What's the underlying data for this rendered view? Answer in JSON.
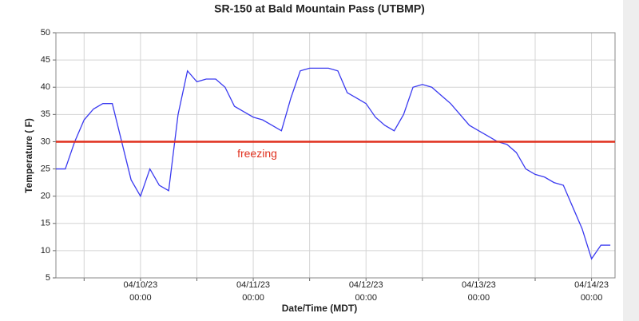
{
  "chart_data": {
    "type": "line",
    "title": "SR-150 at Bald Mountain Pass (UTBMP)",
    "xlabel": "Date/Time (MDT)",
    "ylabel": "Temperature ( F)",
    "x": [
      "04/09/23 06:00",
      "04/09/23 08:00",
      "04/09/23 10:00",
      "04/09/23 12:00",
      "04/09/23 14:00",
      "04/09/23 16:00",
      "04/09/23 18:00",
      "04/09/23 20:00",
      "04/09/23 22:00",
      "04/10/23 00:00",
      "04/10/23 02:00",
      "04/10/23 04:00",
      "04/10/23 06:00",
      "04/10/23 08:00",
      "04/10/23 10:00",
      "04/10/23 12:00",
      "04/10/23 14:00",
      "04/10/23 16:00",
      "04/10/23 18:00",
      "04/10/23 20:00",
      "04/10/23 22:00",
      "04/11/23 00:00",
      "04/11/23 02:00",
      "04/11/23 04:00",
      "04/11/23 06:00",
      "04/11/23 08:00",
      "04/11/23 10:00",
      "04/11/23 12:00",
      "04/11/23 14:00",
      "04/11/23 16:00",
      "04/11/23 18:00",
      "04/11/23 20:00",
      "04/11/23 22:00",
      "04/12/23 00:00",
      "04/12/23 02:00",
      "04/12/23 04:00",
      "04/12/23 06:00",
      "04/12/23 08:00",
      "04/12/23 10:00",
      "04/12/23 12:00",
      "04/12/23 14:00",
      "04/12/23 16:00",
      "04/12/23 18:00",
      "04/12/23 20:00",
      "04/12/23 22:00",
      "04/13/23 00:00",
      "04/13/23 02:00",
      "04/13/23 04:00",
      "04/13/23 06:00",
      "04/13/23 08:00",
      "04/13/23 10:00",
      "04/13/23 12:00",
      "04/13/23 14:00",
      "04/13/23 16:00",
      "04/13/23 18:00",
      "04/13/23 20:00",
      "04/13/23 22:00",
      "04/14/23 00:00",
      "04/14/23 02:00",
      "04/14/23 04:00"
    ],
    "series": [
      {
        "name": "Temperature",
        "color": "#3a3af0",
        "values": [
          25,
          25,
          30,
          34,
          36,
          37,
          37,
          30,
          23,
          20,
          25,
          22,
          21,
          35,
          43,
          41,
          41.5,
          41.5,
          40,
          36.5,
          35.5,
          34.5,
          34,
          33,
          32,
          38,
          43,
          43.5,
          43.5,
          43.5,
          43,
          39,
          38,
          37,
          34.5,
          33,
          32,
          35,
          40,
          40.5,
          40,
          38.5,
          37,
          35,
          33,
          32,
          31,
          30,
          29.5,
          28,
          25,
          24,
          23.5,
          22.5,
          22,
          18,
          14,
          8.5,
          11,
          11
        ]
      }
    ],
    "reference_line": {
      "value": 30,
      "label": "freezing",
      "color": "#e0301e"
    },
    "xlim": [
      "04/09/23 06:00",
      "04/14/23 05:00"
    ],
    "xticks": [
      {
        "value": "04/09/23 12:00",
        "label": null
      },
      {
        "value": "04/10/23 00:00",
        "label": "04/10/23 00:00"
      },
      {
        "value": "04/10/23 12:00",
        "label": null
      },
      {
        "value": "04/11/23 00:00",
        "label": "04/11/23 00:00"
      },
      {
        "value": "04/11/23 12:00",
        "label": null
      },
      {
        "value": "04/12/23 00:00",
        "label": "04/12/23 00:00"
      },
      {
        "value": "04/12/23 12:00",
        "label": null
      },
      {
        "value": "04/13/23 00:00",
        "label": "04/13/23 00:00"
      },
      {
        "value": "04/13/23 12:00",
        "label": null
      },
      {
        "value": "04/14/23 00:00",
        "label": "04/14/23 00:00"
      }
    ],
    "ylim": [
      5,
      50
    ],
    "yticks": [
      5,
      10,
      15,
      20,
      25,
      30,
      35,
      40,
      45,
      50
    ],
    "grid": true
  }
}
